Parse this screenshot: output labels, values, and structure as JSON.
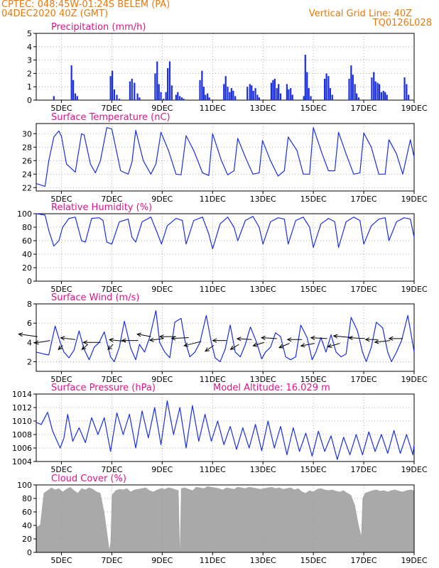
{
  "header": {
    "line1_left": "CPTEC:   048:45W-01:24S   BELEM (PA)",
    "line2_left": "04DEC2020 40Z (GMT)",
    "line2_right": "Vertical Grid Line: 40Z",
    "line3_right": "TQ0126L028"
  },
  "colors": {
    "header": "#e87a0c",
    "title": "#e0138a",
    "line": "#1b2fe0",
    "bar": "#1b2fe0",
    "cloud_fill": "#a9a9a9",
    "wind_arrow": "#000000",
    "grid": "#9a9a9a"
  },
  "chart_data": [
    {
      "id": "precip",
      "type": "bar",
      "title": "Precipitation (mm/h)",
      "annotation": "",
      "yticks": [
        0,
        1,
        2,
        3,
        4,
        5
      ],
      "ylim": [
        0,
        5
      ],
      "xticks": [
        "5DEC",
        "7DEC",
        "9DEC",
        "11DEC",
        "13DEC",
        "15DEC",
        "17DEC",
        "19DEC"
      ],
      "xrange_days": [
        4.0,
        19.0
      ],
      "grid": true,
      "x_day": [
        4.7,
        5.4,
        5.47,
        5.55,
        5.63,
        6.95,
        7.02,
        7.1,
        7.2,
        7.3,
        7.72,
        7.8,
        7.9,
        8.02,
        8.1,
        8.72,
        8.8,
        8.87,
        8.95,
        9.05,
        9.15,
        9.22,
        9.3,
        9.38,
        9.55,
        9.62,
        9.7,
        9.78,
        9.85,
        10.5,
        10.58,
        10.65,
        10.72,
        10.8,
        10.87,
        11.45,
        11.52,
        11.6,
        11.68,
        11.75,
        11.82,
        11.9,
        12.38,
        12.48,
        12.55,
        12.62,
        12.7,
        12.78,
        12.85,
        13.33,
        13.4,
        13.47,
        13.55,
        13.62,
        13.7,
        13.95,
        14.02,
        14.1,
        14.17,
        14.62,
        14.68,
        14.75,
        14.82,
        14.9,
        15.45,
        15.52,
        15.6,
        15.67,
        15.75,
        16.42,
        16.5,
        16.57,
        16.65,
        16.72,
        16.8,
        17.32,
        17.4,
        17.47,
        17.55,
        17.62,
        17.7,
        17.78,
        17.85,
        17.92,
        18.62,
        18.7,
        18.78
      ],
      "values": [
        0.3,
        2.6,
        1.5,
        0.5,
        0.3,
        1.8,
        2.2,
        0.8,
        0.4,
        0.1,
        1.4,
        1.6,
        1.3,
        0.5,
        0.2,
        2.0,
        2.9,
        1.2,
        0.6,
        0.1,
        0.6,
        2.4,
        2.9,
        1.1,
        0.4,
        0.6,
        0.3,
        0.2,
        0.1,
        1.5,
        2.2,
        1.0,
        0.4,
        0.5,
        0.2,
        1.2,
        1.8,
        1.0,
        0.6,
        0.9,
        0.7,
        0.3,
        1.0,
        1.2,
        1.1,
        0.7,
        0.9,
        0.4,
        0.2,
        1.3,
        1.5,
        1.6,
        0.9,
        1.2,
        0.5,
        1.2,
        0.8,
        0.9,
        0.4,
        0.3,
        3.4,
        2.1,
        0.9,
        0.3,
        1.6,
        2.0,
        1.8,
        0.9,
        0.4,
        1.6,
        2.6,
        1.9,
        1.2,
        0.5,
        0.2,
        1.7,
        2.1,
        1.4,
        1.3,
        1.2,
        0.6,
        0.7,
        0.6,
        0.4,
        1.7,
        1.2,
        0.4
      ]
    },
    {
      "id": "temp",
      "type": "line",
      "title": "Surface Temperature (nC)",
      "annotation": "",
      "yticks": [
        22,
        24,
        26,
        28,
        30
      ],
      "ylim": [
        21.5,
        31.5
      ],
      "xticks": [
        "5DEC",
        "7DEC",
        "9DEC",
        "11DEC",
        "13DEC",
        "15DEC",
        "17DEC",
        "19DEC"
      ],
      "xrange_days": [
        4.0,
        19.0
      ],
      "grid": true,
      "x_day": [
        4.0,
        4.35,
        4.5,
        4.7,
        4.9,
        5.0,
        5.2,
        5.4,
        5.55,
        5.8,
        5.9,
        6.15,
        6.35,
        6.55,
        6.8,
        7.0,
        7.35,
        7.65,
        7.8,
        7.95,
        8.25,
        8.55,
        8.75,
        8.95,
        9.25,
        9.55,
        9.75,
        9.95,
        10.25,
        10.6,
        10.85,
        11.0,
        11.35,
        11.6,
        11.85,
        12.0,
        12.3,
        12.6,
        12.85,
        12.98,
        13.3,
        13.6,
        13.85,
        14.0,
        14.35,
        14.6,
        14.85,
        15.0,
        15.35,
        15.6,
        15.85,
        16.0,
        16.3,
        16.6,
        16.85,
        17.0,
        17.3,
        17.6,
        17.85,
        18.0,
        18.3,
        18.55,
        18.85,
        19.0
      ],
      "values": [
        22.6,
        22.2,
        26.0,
        29.5,
        30.4,
        29.6,
        25.5,
        24.8,
        24.3,
        30.0,
        29.8,
        25.5,
        24.2,
        26.0,
        30.9,
        30.7,
        24.5,
        24.0,
        25.8,
        30.5,
        26.0,
        24.0,
        25.5,
        30.2,
        27.5,
        24.0,
        23.9,
        29.7,
        27.5,
        24.2,
        23.8,
        30.0,
        26.0,
        23.9,
        24.5,
        29.3,
        26.5,
        24.0,
        24.2,
        29.0,
        26.0,
        23.7,
        24.5,
        29.5,
        27.5,
        24.0,
        24.0,
        30.9,
        27.0,
        24.5,
        24.5,
        30.2,
        27.0,
        24.0,
        24.2,
        30.1,
        28.0,
        24.0,
        24.0,
        29.1,
        27.0,
        24.0,
        29.1,
        26.5
      ]
    },
    {
      "id": "rh",
      "type": "line",
      "title": "Relative Humidity (%)",
      "annotation": "",
      "yticks": [
        0,
        20,
        40,
        60,
        80,
        100
      ],
      "ylim": [
        0,
        100
      ],
      "xticks": [
        "5DEC",
        "7DEC",
        "9DEC",
        "11DEC",
        "13DEC",
        "15DEC",
        "17DEC",
        "19DEC"
      ],
      "xrange_days": [
        4.0,
        19.0
      ],
      "grid": true,
      "x_day": [
        4.0,
        4.35,
        4.5,
        4.7,
        4.9,
        5.05,
        5.3,
        5.55,
        5.8,
        5.95,
        6.2,
        6.5,
        6.65,
        6.8,
        7.0,
        7.3,
        7.65,
        7.8,
        7.95,
        8.2,
        8.55,
        8.8,
        8.97,
        9.2,
        9.55,
        9.8,
        9.95,
        10.25,
        10.6,
        10.85,
        11.0,
        11.3,
        11.6,
        11.85,
        12.0,
        12.3,
        12.6,
        12.85,
        13.0,
        13.3,
        13.6,
        13.85,
        14.0,
        14.3,
        14.6,
        14.85,
        15.0,
        15.3,
        15.6,
        15.85,
        16.0,
        16.3,
        16.6,
        16.85,
        17.0,
        17.3,
        17.6,
        17.85,
        18.0,
        18.3,
        18.6,
        18.85,
        19.0
      ],
      "values": [
        100,
        98,
        75,
        52,
        60,
        80,
        93,
        95,
        60,
        58,
        93,
        94,
        90,
        58,
        55,
        88,
        92,
        65,
        58,
        88,
        95,
        72,
        55,
        82,
        93,
        90,
        55,
        90,
        95,
        70,
        48,
        85,
        95,
        80,
        60,
        90,
        96,
        80,
        55,
        88,
        94,
        92,
        55,
        90,
        95,
        80,
        50,
        85,
        93,
        88,
        50,
        88,
        95,
        90,
        55,
        82,
        92,
        94,
        60,
        88,
        94,
        92,
        65
      ]
    },
    {
      "id": "wind",
      "type": "line",
      "title": "Surface Wind (m/s)",
      "annotation": "",
      "yticks": [
        2,
        4,
        6,
        8
      ],
      "ylim": [
        1,
        8
      ],
      "xticks": [
        "5DEC",
        "7DEC",
        "9DEC",
        "11DEC",
        "13DEC",
        "15DEC",
        "17DEC",
        "19DEC"
      ],
      "xrange_days": [
        4.0,
        19.0
      ],
      "grid": true,
      "x_day": [
        4.0,
        4.3,
        4.5,
        4.75,
        4.95,
        5.1,
        5.3,
        5.5,
        5.7,
        5.9,
        6.1,
        6.3,
        6.5,
        6.7,
        6.95,
        7.1,
        7.3,
        7.5,
        7.75,
        7.95,
        8.1,
        8.3,
        8.5,
        8.75,
        8.9,
        9.1,
        9.3,
        9.5,
        9.75,
        9.9,
        10.1,
        10.3,
        10.5,
        10.75,
        10.95,
        11.1,
        11.3,
        11.5,
        11.7,
        11.9,
        12.1,
        12.3,
        12.5,
        12.75,
        12.95,
        13.1,
        13.3,
        13.5,
        13.7,
        13.9,
        14.1,
        14.3,
        14.5,
        14.75,
        14.95,
        15.1,
        15.3,
        15.5,
        15.7,
        15.9,
        16.1,
        16.3,
        16.5,
        16.75,
        16.95,
        17.1,
        17.3,
        17.5,
        17.75,
        17.95,
        18.1,
        18.3,
        18.5,
        18.75,
        18.95,
        19.0
      ],
      "values": [
        3.0,
        2.8,
        2.7,
        5.7,
        4.0,
        3.0,
        2.4,
        3.2,
        5.2,
        3.3,
        2.2,
        3.5,
        4.0,
        5.1,
        2.5,
        2.0,
        3.5,
        6.2,
        3.4,
        2.2,
        3.8,
        3.0,
        4.5,
        7.3,
        4.0,
        3.0,
        2.4,
        6.1,
        6.5,
        4.2,
        2.5,
        3.0,
        4.0,
        6.8,
        4.0,
        2.4,
        2.0,
        3.3,
        5.8,
        3.0,
        2.5,
        3.8,
        5.6,
        4.0,
        2.3,
        3.0,
        3.5,
        5.0,
        4.6,
        2.5,
        2.2,
        2.5,
        5.8,
        4.5,
        2.2,
        3.0,
        4.5,
        3.0,
        4.8,
        3.0,
        2.5,
        2.8,
        6.6,
        5.2,
        3.0,
        2.0,
        3.5,
        6.1,
        5.5,
        3.0,
        2.0,
        3.0,
        4.2,
        6.8,
        3.8,
        3.0
      ],
      "arrows_x_day": [
        4.05,
        4.55,
        5.05,
        5.55,
        6.05,
        6.55,
        7.05,
        7.55,
        8.05,
        8.55,
        9.05,
        9.55,
        10.05,
        10.55,
        11.05,
        11.55,
        12.05,
        12.55,
        13.05,
        13.55,
        14.05,
        14.55,
        15.05,
        15.55,
        16.05,
        16.55,
        17.05,
        17.55,
        18.05,
        18.55
      ],
      "arrows_y_ms": [
        4.6,
        4.2,
        3.7,
        4.3,
        3.8,
        4.0,
        3.8,
        4.1,
        4.2,
        4.6,
        4.4,
        4.6,
        4.5,
        4.1,
        3.7,
        4.2,
        3.8,
        4.3,
        4.0,
        4.4,
        3.9,
        4.3,
        3.9,
        4.4,
        3.9,
        4.5,
        4.4,
        4.3,
        4.2,
        4.4
      ],
      "arrows_u_ms": [
        -2.2,
        -1.8,
        -0.5,
        -1.7,
        -0.7,
        -2.0,
        -0.6,
        -1.9,
        -1.9,
        -1.6,
        -1.6,
        -1.9,
        -2.0,
        -2.0,
        -1.0,
        -1.6,
        -1.0,
        -1.7,
        -1.3,
        -1.8,
        -1.2,
        -1.7,
        -1.6,
        -1.9,
        -1.4,
        -2.2,
        -1.9,
        -1.4,
        -1.8,
        -1.6
      ],
      "arrows_v_ms": [
        0.3,
        -0.3,
        -0.5,
        0.2,
        -0.6,
        0.0,
        -0.6,
        0.2,
        0.0,
        0.3,
        -0.2,
        0.0,
        -0.1,
        -0.5,
        -0.7,
        0.0,
        -0.6,
        0.1,
        -0.4,
        0.1,
        -0.5,
        0.0,
        -0.3,
        0.1,
        -0.4,
        0.2,
        0.1,
        0.0,
        -0.2,
        0.0
      ]
    },
    {
      "id": "pres",
      "type": "line",
      "title": "Surface Pressure (hPa)",
      "annotation": "Model Altitude: 16.029 m",
      "yticks": [
        1004,
        1006,
        1008,
        1010,
        1012,
        1014
      ],
      "ylim": [
        1004,
        1014
      ],
      "xticks": [
        "5DEC",
        "7DEC",
        "9DEC",
        "11DEC",
        "13DEC",
        "15DEC",
        "17DEC",
        "19DEC"
      ],
      "xrange_days": [
        4.0,
        19.0
      ],
      "grid": true,
      "x_day": [
        4.0,
        4.2,
        4.45,
        4.65,
        4.95,
        5.1,
        5.25,
        5.45,
        5.7,
        5.95,
        6.2,
        6.45,
        6.7,
        6.95,
        7.2,
        7.45,
        7.7,
        7.95,
        8.2,
        8.45,
        8.7,
        8.95,
        9.2,
        9.45,
        9.7,
        9.95,
        10.2,
        10.45,
        10.7,
        10.95,
        11.2,
        11.45,
        11.7,
        11.95,
        12.2,
        12.45,
        12.7,
        12.95,
        13.2,
        13.45,
        13.7,
        13.95,
        14.2,
        14.45,
        14.7,
        14.95,
        15.2,
        15.45,
        15.7,
        15.95,
        16.2,
        16.45,
        16.7,
        16.95,
        17.2,
        17.45,
        17.7,
        17.95,
        18.2,
        18.45,
        18.7,
        18.95,
        19.0
      ],
      "values": [
        1009.8,
        1009.5,
        1011.3,
        1008.5,
        1006.0,
        1007.5,
        1011.0,
        1007.0,
        1009.0,
        1006.8,
        1010.5,
        1008.0,
        1010.5,
        1005.5,
        1011.2,
        1008.0,
        1011.0,
        1006.0,
        1011.5,
        1007.5,
        1012.0,
        1006.5,
        1013.0,
        1008.0,
        1012.0,
        1006.0,
        1012.3,
        1007.0,
        1011.0,
        1007.0,
        1010.0,
        1006.5,
        1009.2,
        1005.8,
        1009.0,
        1006.0,
        1009.5,
        1005.6,
        1010.0,
        1006.0,
        1009.2,
        1005.0,
        1009.0,
        1005.5,
        1008.2,
        1004.8,
        1008.5,
        1005.5,
        1007.8,
        1004.3,
        1007.6,
        1005.0,
        1008.0,
        1005.0,
        1008.4,
        1005.5,
        1008.0,
        1005.2,
        1008.6,
        1005.2,
        1008.0,
        1005.0,
        1006.5
      ]
    },
    {
      "id": "cloud",
      "type": "area",
      "title": "Cloud Cover (%)",
      "annotation": "",
      "yticks": [
        0,
        20,
        40,
        60,
        80,
        100
      ],
      "ylim": [
        0,
        100
      ],
      "xticks": [
        "5DEC",
        "7DEC",
        "9DEC",
        "11DEC",
        "13DEC",
        "15DEC",
        "17DEC",
        "19DEC"
      ],
      "xrange_days": [
        4.0,
        19.0
      ],
      "grid": true,
      "x_day": [
        4.0,
        4.15,
        4.3,
        4.45,
        4.6,
        4.75,
        4.9,
        5.05,
        5.2,
        5.35,
        5.5,
        5.65,
        5.8,
        5.95,
        6.1,
        6.25,
        6.4,
        6.55,
        6.7,
        6.85,
        6.9,
        6.95,
        7.0,
        7.15,
        7.3,
        7.45,
        7.6,
        7.75,
        7.9,
        8.05,
        8.2,
        8.35,
        8.5,
        8.65,
        8.8,
        8.95,
        9.1,
        9.25,
        9.4,
        9.55,
        9.65,
        9.7,
        9.75,
        9.9,
        10.05,
        10.2,
        10.35,
        10.5,
        10.65,
        10.8,
        10.95,
        11.1,
        11.25,
        11.4,
        11.55,
        11.7,
        11.85,
        12.0,
        12.15,
        12.3,
        12.45,
        12.6,
        12.75,
        12.9,
        13.05,
        13.2,
        13.35,
        13.5,
        13.65,
        13.8,
        13.95,
        14.1,
        14.25,
        14.4,
        14.55,
        14.7,
        14.85,
        15.0,
        15.15,
        15.3,
        15.45,
        15.6,
        15.75,
        15.9,
        16.05,
        16.2,
        16.35,
        16.5,
        16.65,
        16.8,
        16.9,
        16.95,
        17.05,
        17.2,
        17.35,
        17.5,
        17.65,
        17.8,
        17.95,
        18.1,
        18.25,
        18.4,
        18.55,
        18.7,
        18.85,
        19.0
      ],
      "values": [
        38,
        40,
        88,
        92,
        96,
        93,
        95,
        90,
        94,
        97,
        92,
        88,
        95,
        93,
        96,
        94,
        90,
        88,
        60,
        20,
        5,
        15,
        85,
        92,
        94,
        93,
        95,
        90,
        93,
        94,
        95,
        96,
        92,
        90,
        93,
        95,
        94,
        96,
        95,
        93,
        92,
        5,
        95,
        96,
        94,
        92,
        97,
        96,
        95,
        98,
        97,
        96,
        95,
        93,
        96,
        95,
        94,
        97,
        96,
        95,
        97,
        96,
        95,
        94,
        95,
        96,
        97,
        95,
        96,
        94,
        95,
        96,
        93,
        95,
        90,
        88,
        92,
        90,
        94,
        95,
        93,
        92,
        93,
        91,
        90,
        92,
        88,
        85,
        70,
        40,
        25,
        80,
        88,
        90,
        92,
        93,
        91,
        92,
        90,
        92,
        93,
        91,
        90,
        92,
        93,
        92
      ]
    }
  ]
}
